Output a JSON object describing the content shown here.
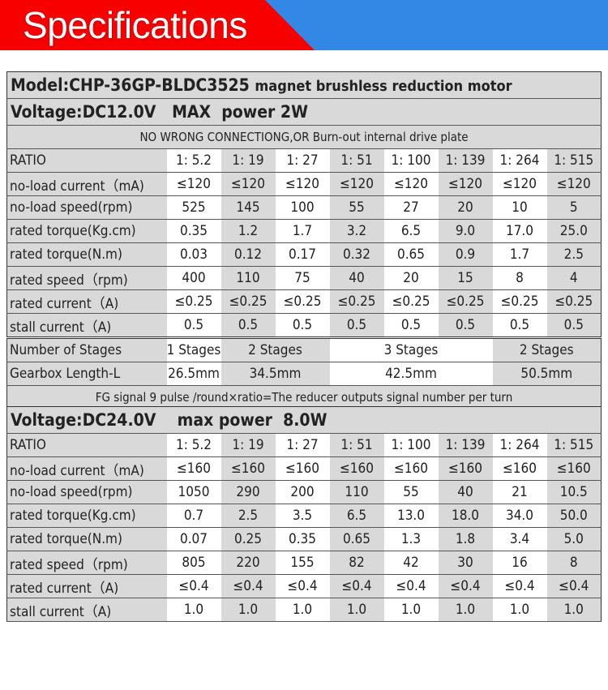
{
  "header": {
    "title": "Specifications",
    "colors": {
      "red": "#f80000",
      "blue": "#3388e6"
    }
  },
  "model": {
    "bold": "Model:CHP-36GP-BLDC3525",
    "desc": "magnet brushless reduction motor"
  },
  "section12": {
    "voltage": "Voltage:DC12.0V   MAX  power 2W",
    "note": "NO WRONG CONNECTIONG,OR Burn-out internal drive plate",
    "ratio_label": "RATIO",
    "ratios": [
      "1:  5.2",
      "1:  19",
      "1:  27",
      "1:  51",
      "1:  100",
      "1:  139",
      "1:  264",
      "1:  515"
    ],
    "rows": [
      {
        "label": "no-load current（mA)",
        "values": [
          "≤120",
          "≤120",
          "≤120",
          "≤120",
          "≤120",
          "≤120",
          "≤120",
          "≤120"
        ]
      },
      {
        "label": "no-load speed(rpm)",
        "values": [
          "525",
          "145",
          "100",
          "55",
          "27",
          "20",
          "10",
          "5"
        ]
      },
      {
        "label": "rated torque(Kg.cm)",
        "values": [
          "0.35",
          "1.2",
          "1.7",
          "3.2",
          "6.5",
          "9.0",
          "17.0",
          "25.0"
        ]
      },
      {
        "label": "rated torque(N.m)",
        "values": [
          "0.03",
          "0.12",
          "0.17",
          "0.32",
          "0.65",
          "0.9",
          "1.7",
          "2.5"
        ]
      },
      {
        "label": "rated speed（rpm)",
        "values": [
          "400",
          "110",
          "75",
          "40",
          "20",
          "15",
          "8",
          "4"
        ]
      },
      {
        "label": "rated current（A)",
        "values": [
          "≤0.25",
          "≤0.25",
          "≤0.25",
          "≤0.25",
          "≤0.25",
          "≤0.25",
          "≤0.25",
          "≤0.25"
        ]
      },
      {
        "label": "stall current（A)",
        "values": [
          "0.5",
          "0.5",
          "0.5",
          "0.5",
          "0.5",
          "0.5",
          "0.5",
          "0.5"
        ]
      }
    ]
  },
  "gearbox": {
    "stages_label": "Number of Stages",
    "stages": [
      "1 Stages",
      "2 Stages",
      "3 Stages",
      "2 Stages"
    ],
    "length_label": "Gearbox Length-L",
    "lengths": [
      "26.5mm",
      "34.5mm",
      "42.5mm",
      "50.5mm"
    ],
    "fg_note": "FG signal 9 pulse /round×ratio=The reducer outputs signal number per turn"
  },
  "section24": {
    "voltage": "Voltage:DC24.0V    max power  8.0W",
    "ratio_label": "RATIO",
    "ratios": [
      "1:  5.2",
      "1:  19",
      "1:  27",
      "1:  51",
      "1:  100",
      "1:  139",
      "1:  264",
      "1:  515"
    ],
    "rows": [
      {
        "label": "no-load current（mA)",
        "values": [
          "≤160",
          "≤160",
          "≤160",
          "≤160",
          "≤160",
          "≤160",
          "≤160",
          "≤160"
        ]
      },
      {
        "label": "no-load speed(rpm)",
        "values": [
          "1050",
          "290",
          "200",
          "110",
          "55",
          "40",
          "21",
          "10.5"
        ]
      },
      {
        "label": "rated torque(Kg.cm)",
        "values": [
          "0.7",
          "2.5",
          "3.5",
          "6.5",
          "13.0",
          "18.0",
          "34.0",
          "50.0"
        ]
      },
      {
        "label": "rated torque(N.m)",
        "values": [
          "0.07",
          "0.25",
          "0.35",
          "0.65",
          "1.3",
          "1.8",
          "3.4",
          "5.0"
        ]
      },
      {
        "label": "rated speed（rpm)",
        "values": [
          "805",
          "220",
          "155",
          "82",
          "42",
          "30",
          "16",
          "8"
        ]
      },
      {
        "label": "rated current（A)",
        "values": [
          "≤0.4",
          "≤0.4",
          "≤0.4",
          "≤0.4",
          "≤0.4",
          "≤0.4",
          "≤0.4",
          "≤0.4"
        ]
      },
      {
        "label": "stall current（A)",
        "values": [
          "1.0",
          "1.0",
          "1.0",
          "1.0",
          "1.0",
          "1.0",
          "1.0",
          "1.0"
        ]
      }
    ]
  }
}
